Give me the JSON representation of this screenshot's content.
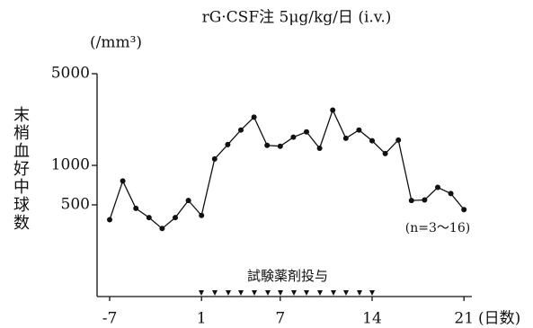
{
  "chart_data": {
    "type": "line",
    "title": "rG·CSF注 5μg/kg/日 (i.v.)",
    "y_unit": "(/mm³)",
    "y_label": "末梢血好中球数",
    "x_label": "(日数)",
    "annotations": [
      "試験薬剤投与",
      "(n=3〜16)"
    ],
    "categories": [
      "-7",
      null,
      null,
      null,
      null,
      null,
      null,
      "1",
      null,
      null,
      null,
      null,
      null,
      "7",
      null,
      null,
      null,
      null,
      null,
      null,
      "14",
      null,
      null,
      null,
      null,
      null,
      null,
      "21"
    ],
    "series": [
      {
        "name": "rG-CSF",
        "color": "#111111",
        "values": [
          385,
          760,
          470,
          400,
          330,
          400,
          540,
          415,
          1120,
          1440,
          1860,
          2330,
          1420,
          1400,
          1640,
          1800,
          1350,
          2640,
          1610,
          1860,
          1540,
          1230,
          1560,
          540,
          545,
          680,
          610,
          460
        ]
      }
    ],
    "log_y": true,
    "ylim": [
      100,
      5000
    ],
    "yticks": [
      500,
      1000,
      5000
    ],
    "grid": false
  }
}
